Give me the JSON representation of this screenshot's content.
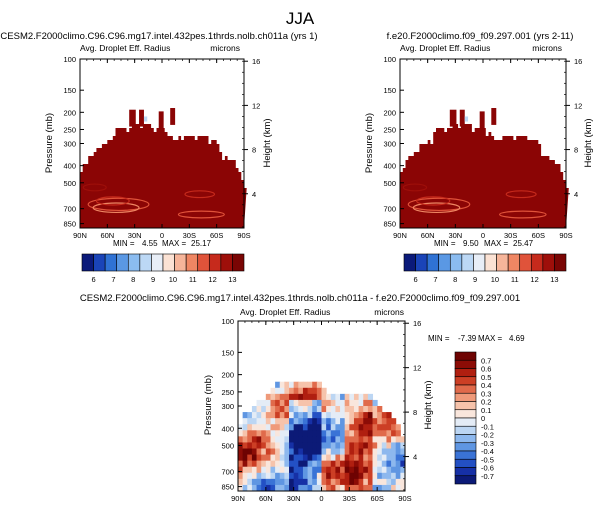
{
  "page": {
    "title": "JJA"
  },
  "colors": {
    "main_levels": [
      "#0b1a7a",
      "#1a44b8",
      "#2f72d4",
      "#5a98e4",
      "#8bbcf0",
      "#bcd8f5",
      "#e8eef7",
      "#fbe2d4",
      "#f6b59a",
      "#ef8663",
      "#e0533a",
      "#c62a1c",
      "#9e0f0a",
      "#7a0504"
    ],
    "diff_levels": [
      "#0c1a77",
      "#1630a6",
      "#2350c4",
      "#3a73d6",
      "#5f96e2",
      "#8db8ee",
      "#bcd6f3",
      "#e4ecf6",
      "#f9e6dc",
      "#f6c3ab",
      "#ef9a7a",
      "#e06a4b",
      "#cc3f25",
      "#b01f10",
      "#8c0c06",
      "#6e0302"
    ],
    "fill_main": "#9b1008",
    "field_base": "#8b0505"
  },
  "chart_data": [
    {
      "id": "left",
      "type": "heatmap",
      "title": "CESM2.F2000climo.C96.C96.mg17.intel.432pes.1thrds.nolb.ch011a (yrs 1)",
      "subtitle": "Avg. Droplet Eff. Radius",
      "units": "microns",
      "ylabel": "Pressure (mb)",
      "y2label": "Height (km)",
      "x_ticks": [
        "90N",
        "60N",
        "30N",
        "0",
        "30S",
        "60S",
        "90S"
      ],
      "y_ticks": [
        "100",
        "150",
        "200",
        "250",
        "300",
        "400",
        "500",
        "700",
        "850"
      ],
      "y_tick_values": [
        100,
        150,
        200,
        250,
        300,
        400,
        500,
        700,
        850
      ],
      "y2_ticks": [
        "16",
        "12",
        "8",
        "4"
      ],
      "y2_tick_values": [
        16,
        12,
        8,
        4
      ],
      "min_label": "MIN =",
      "min": "4.55",
      "max_label": "MAX =",
      "max": "25.17",
      "colorbar_labels": [
        "6",
        "7",
        "8",
        "9",
        "10",
        "11",
        "12",
        "13"
      ]
    },
    {
      "id": "right",
      "type": "heatmap",
      "title": "f.e20.F2000climo.f09_f09.297.001 (yrs 2-11)",
      "subtitle": "Avg. Droplet Eff. Radius",
      "units": "microns",
      "ylabel": "Pressure (mb)",
      "y2label": "Height (km)",
      "x_ticks": [
        "90N",
        "60N",
        "30N",
        "0",
        "30S",
        "60S",
        "90S"
      ],
      "y_ticks": [
        "100",
        "150",
        "200",
        "250",
        "300",
        "400",
        "500",
        "700",
        "850"
      ],
      "y_tick_values": [
        100,
        150,
        200,
        250,
        300,
        400,
        500,
        700,
        850
      ],
      "y2_ticks": [
        "16",
        "12",
        "8",
        "4"
      ],
      "y2_tick_values": [
        16,
        12,
        8,
        4
      ],
      "min_label": "MIN =",
      "min": "9.50",
      "max_label": "MAX =",
      "max": "25.47",
      "colorbar_labels": [
        "6",
        "7",
        "8",
        "9",
        "10",
        "11",
        "12",
        "13"
      ]
    },
    {
      "id": "diff",
      "type": "heatmap",
      "title": "CESM2.F2000climo.C96.C96.mg17.intel.432pes.1thrds.nolb.ch011a - f.e20.F2000climo.f09_f09.297.001",
      "subtitle": "Avg. Droplet Eff. Radius",
      "units": "microns",
      "ylabel": "Pressure (mb)",
      "y2label": "Height (km)",
      "x_ticks": [
        "90N",
        "60N",
        "30N",
        "0",
        "30S",
        "60S",
        "90S"
      ],
      "y_ticks": [
        "100",
        "150",
        "200",
        "250",
        "300",
        "400",
        "500",
        "700",
        "850"
      ],
      "y_tick_values": [
        100,
        150,
        200,
        250,
        300,
        400,
        500,
        700,
        850
      ],
      "y2_ticks": [
        "16",
        "12",
        "8",
        "4"
      ],
      "y2_tick_values": [
        16,
        12,
        8,
        4
      ],
      "min_label": "MIN =",
      "min": "-7.39",
      "max_label": "MAX =",
      "max": "4.69",
      "colorbar_labels": [
        "0.7",
        "0.6",
        "0.5",
        "0.4",
        "0.3",
        "0.2",
        "0.1",
        "0",
        "-0.1",
        "-0.2",
        "-0.3",
        "-0.4",
        "-0.5",
        "-0.6",
        "-0.7"
      ]
    }
  ]
}
